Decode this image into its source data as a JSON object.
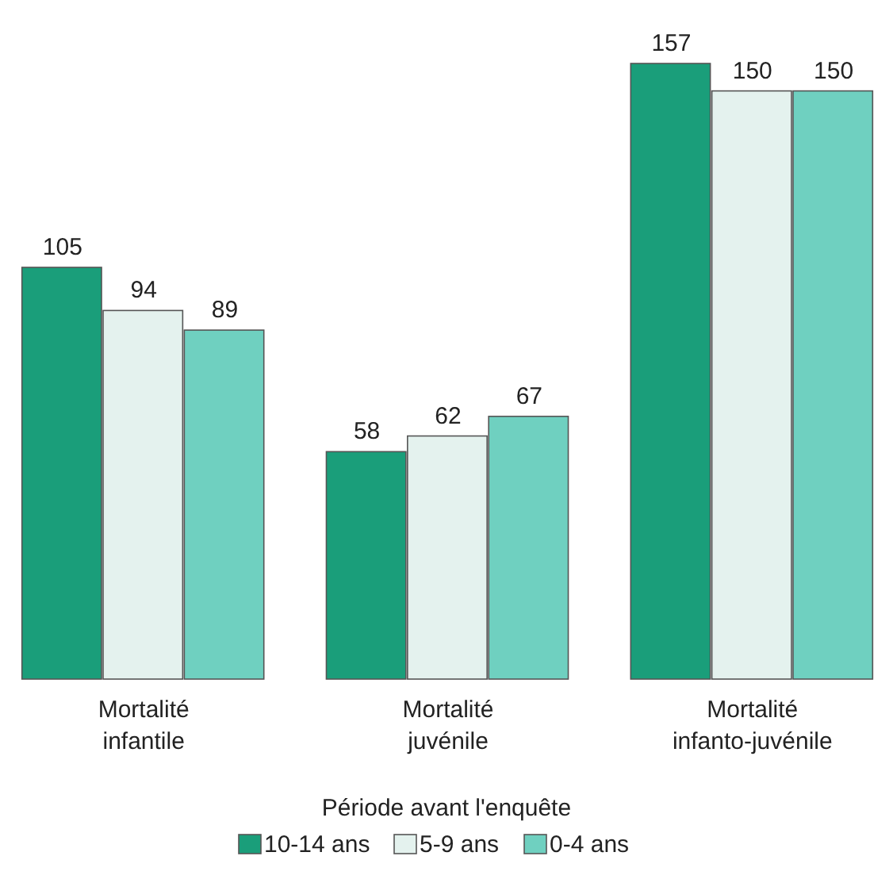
{
  "chart_data": {
    "type": "bar",
    "categories": [
      "Mortalité infantile",
      "Mortalité juvénile",
      "Mortalité infanto-juvénile"
    ],
    "series": [
      {
        "name": "10-14 ans",
        "color": "#1a9e7a",
        "values": [
          105,
          58,
          157
        ]
      },
      {
        "name": "5-9 ans",
        "color": "#e4f2ee",
        "values": [
          94,
          62,
          150
        ]
      },
      {
        "name": "0-4 ans",
        "color": "#6fd0c0",
        "values": [
          89,
          67,
          150
        ]
      }
    ],
    "data_labels": true,
    "legend": "bottom",
    "legend_title": "Période avant l'enquête"
  }
}
